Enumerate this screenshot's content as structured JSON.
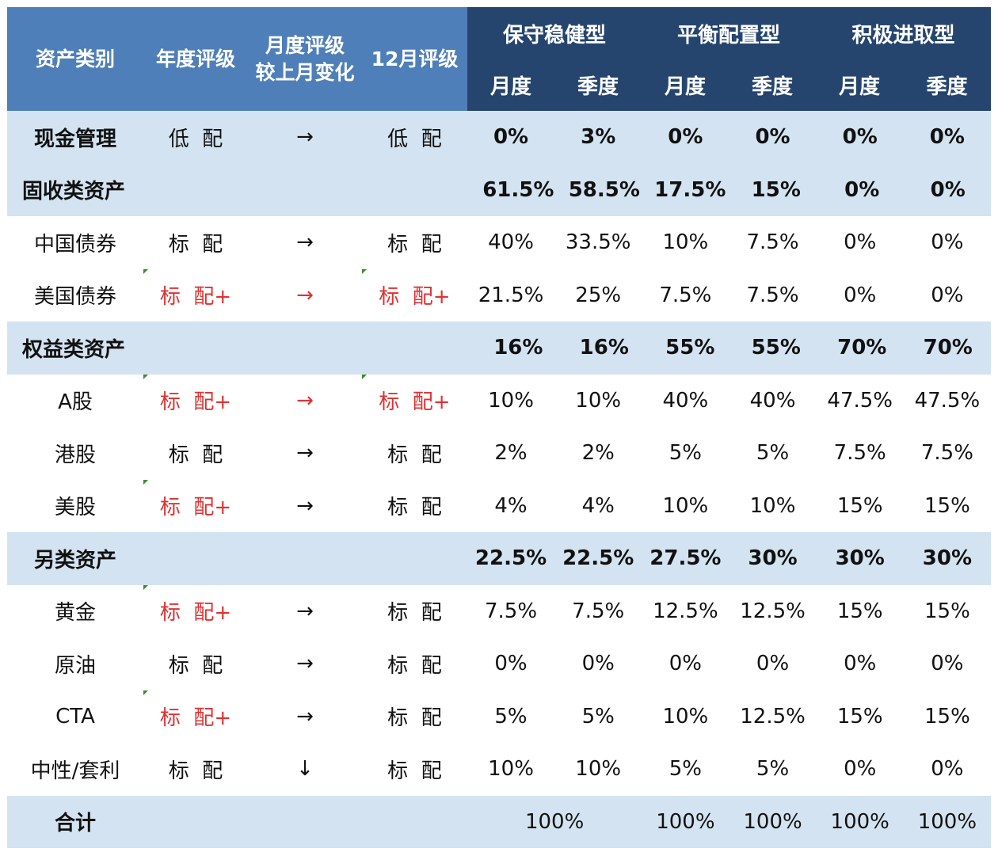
{
  "headers": {
    "asset_class": "资产类别",
    "annual_rating": "年度评级",
    "monthly_change_line1": "月度评级",
    "monthly_change_line2": "较上月变化",
    "dec_rating": "12月评级",
    "groups": [
      "保守稳健型",
      "平衡配置型",
      "积极进取型"
    ],
    "sub": [
      "月度",
      "季度",
      "月度",
      "季度",
      "月度",
      "季度"
    ]
  },
  "rows": [
    {
      "type": "section",
      "name": "现金管理",
      "annual": "低  配",
      "change": "→",
      "dec": "低  配",
      "values": [
        "0%",
        "3%",
        "0%",
        "0%",
        "0%",
        "0%"
      ]
    },
    {
      "type": "section",
      "name": "固收类资产",
      "annual": "",
      "change": "",
      "dec": "",
      "values": [
        "61.5%",
        "58.5%",
        "17.5%",
        "15%",
        "0%",
        "0%"
      ]
    },
    {
      "type": "item",
      "name": "中国债券",
      "annual": "标  配",
      "change": "→",
      "dec": "标  配",
      "values": [
        "40%",
        "33.5%",
        "10%",
        "7.5%",
        "0%",
        "0%"
      ]
    },
    {
      "type": "item",
      "name": "美国债券",
      "annual": "标  配+",
      "change": "→",
      "dec": "标  配+",
      "values": [
        "21.5%",
        "25%",
        "7.5%",
        "7.5%",
        "0%",
        "0%"
      ]
    },
    {
      "type": "section",
      "name": "权益类资产",
      "annual": "",
      "change": "",
      "dec": "",
      "values": [
        "16%",
        "16%",
        "55%",
        "55%",
        "70%",
        "70%"
      ]
    },
    {
      "type": "item",
      "name": "A股",
      "annual": "标  配+",
      "change": "→",
      "dec": "标  配+",
      "values": [
        "10%",
        "10%",
        "40%",
        "40%",
        "47.5%",
        "47.5%"
      ]
    },
    {
      "type": "item",
      "name": "港股",
      "annual": "标  配",
      "change": "→",
      "dec": "标  配",
      "values": [
        "2%",
        "2%",
        "5%",
        "5%",
        "7.5%",
        "7.5%"
      ]
    },
    {
      "type": "item",
      "name": "美股",
      "annual": "标  配+",
      "change": "→",
      "dec": "标  配",
      "values": [
        "4%",
        "4%",
        "10%",
        "10%",
        "15%",
        "15%"
      ]
    },
    {
      "type": "section",
      "name": "另类资产",
      "annual": "",
      "change": "",
      "dec": "",
      "values": [
        "22.5%",
        "22.5%",
        "27.5%",
        "30%",
        "30%",
        "30%"
      ]
    },
    {
      "type": "item",
      "name": "黄金",
      "annual": "标  配+",
      "change": "→",
      "dec": "标  配",
      "values": [
        "7.5%",
        "7.5%",
        "12.5%",
        "12.5%",
        "15%",
        "15%"
      ]
    },
    {
      "type": "item",
      "name": "原油",
      "annual": "标  配",
      "change": "→",
      "dec": "标  配",
      "values": [
        "0%",
        "0%",
        "0%",
        "0%",
        "0%",
        "0%"
      ]
    },
    {
      "type": "item",
      "name": "CTA",
      "annual": "标  配+",
      "change": "→",
      "dec": "标  配",
      "values": [
        "5%",
        "5%",
        "10%",
        "12.5%",
        "15%",
        "15%"
      ]
    },
    {
      "type": "item",
      "name": "中性/套利",
      "annual": "标  配",
      "change": "↓",
      "dec": "标  配",
      "values": [
        "10%",
        "10%",
        "5%",
        "5%",
        "0%",
        "0%"
      ]
    }
  ],
  "total": {
    "name": "合计",
    "conservative": "100%",
    "values": [
      "100%",
      "100%",
      "100%",
      "100%"
    ]
  },
  "colors": {
    "header_light": "#4f7fb9",
    "header_dark": "#25456e",
    "section_bg": "#d3e3f1",
    "upgrade_red": "#e03131"
  }
}
